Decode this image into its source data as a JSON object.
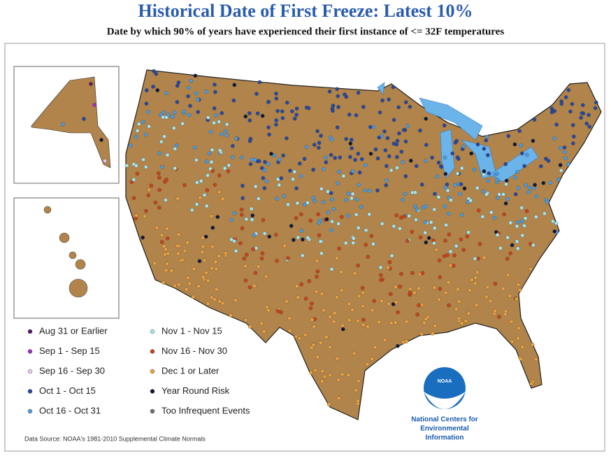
{
  "header": {
    "title": "Historical Date of First Freeze: Latest 10%",
    "subtitle": "Date by which 90% of years have experienced their first instance of <= 32F temperatures"
  },
  "legend": {
    "items": [
      {
        "label": "Aug 31 or Earlier",
        "color": "#5a1a6a"
      },
      {
        "label": "Sep 1 - Sep 15",
        "color": "#a030c8"
      },
      {
        "label": "Sep 16 - Sep 30",
        "color": "#ecc8ee"
      },
      {
        "label": "Oct 1 - Oct 15",
        "color": "#2848a0"
      },
      {
        "label": "Oct 16 - Oct 31",
        "color": "#4c9ce0"
      },
      {
        "label": "Nov 1 - Nov 15",
        "color": "#a8e4ec"
      },
      {
        "label": "Nov 16 - Nov 30",
        "color": "#c8441a"
      },
      {
        "label": "Dec 1 or Later",
        "color": "#e8a040"
      },
      {
        "label": "Year Round Risk",
        "color": "#101838"
      },
      {
        "label": "Too Infrequent Events",
        "color": "#6e6e6e"
      }
    ]
  },
  "source": "Data Source: NOAA's 1981-2010 Supplemental Climate Normals",
  "logo": {
    "badge": "NOAA",
    "lines": [
      "National Centers for",
      "Environmental",
      "Information"
    ]
  }
}
